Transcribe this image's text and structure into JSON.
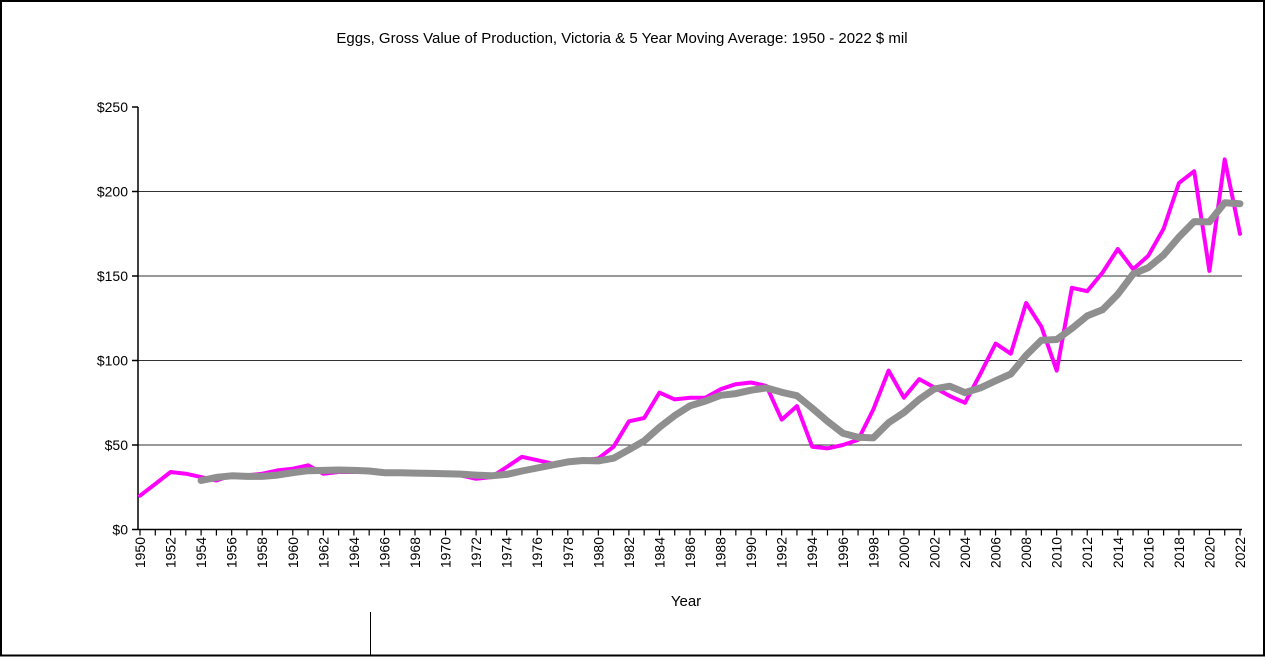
{
  "page": {
    "background": "#ffffff",
    "border_color": "#000000"
  },
  "chart_data": {
    "type": "line",
    "title": "Eggs, Gross Value of Production, Victoria & 5 Year Moving Average: 1950 - 2022 $ mil",
    "xlabel": "Year",
    "ylabel": "",
    "ylim": [
      0,
      250
    ],
    "y_ticks": [
      0,
      50,
      100,
      150,
      200,
      250
    ],
    "y_tick_labels": [
      "$0",
      "$50",
      "$100",
      "$150",
      "$200",
      "$250"
    ],
    "x_start": 1950,
    "x_end": 2022,
    "x_minor_tick_step": 1,
    "x_tick_labels": [
      "1950",
      "1952",
      "1954",
      "1956",
      "1958",
      "1960",
      "1962",
      "1964",
      "1966",
      "1968",
      "1970",
      "1972",
      "1974",
      "1976",
      "1978",
      "1980",
      "1982",
      "1984",
      "1986",
      "1988",
      "1990",
      "1992",
      "1994",
      "1996",
      "1998",
      "2000",
      "2002",
      "2004",
      "2006",
      "2008",
      "2010",
      "2012",
      "2014",
      "2016",
      "2018",
      "2020",
      "2022"
    ],
    "grid": "horizontal-only",
    "legend": "none",
    "series": [
      {
        "name": "Eggs, Gross Value of Production, Victoria ($ mil)",
        "color": "#ff00ff",
        "line_width": 4,
        "years_start": 1950,
        "values": [
          20,
          27,
          34,
          33,
          31,
          29,
          32,
          32,
          33,
          35,
          36,
          38,
          33,
          34,
          34,
          34,
          33,
          33,
          33,
          33,
          33,
          32,
          30,
          31,
          37,
          43,
          41,
          39,
          40,
          41,
          42,
          49,
          64,
          66,
          81,
          77,
          78,
          78,
          83,
          86,
          87,
          85,
          65,
          73,
          49,
          48,
          50,
          53,
          71,
          94,
          78,
          89,
          84,
          79,
          75,
          92,
          110,
          104,
          134,
          120,
          94,
          143,
          141,
          152,
          166,
          154,
          162,
          178,
          205,
          212,
          153,
          219,
          175
        ]
      },
      {
        "name": "5 Year Moving Average",
        "color": "#8f8f8f",
        "line_width": 7,
        "derived": {
          "method": "trailing_moving_average",
          "window": 5,
          "of_series": 0,
          "first_year_plotted": 1954
        }
      }
    ]
  }
}
